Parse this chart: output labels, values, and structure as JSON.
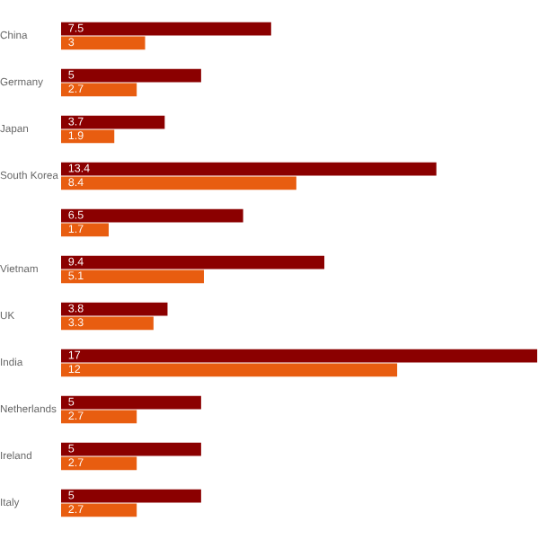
{
  "chart_data": {
    "type": "bar",
    "orientation": "horizontal",
    "data_labels": true,
    "legend": false,
    "tick_labels": "y",
    "categories": [
      "China",
      "Germany",
      "Japan",
      "South Korea",
      null,
      "Vietnam",
      "UK",
      "India",
      "Netherlands",
      "Ireland",
      "Italy"
    ],
    "series": [
      {
        "color": "#8b0000",
        "values": [
          7.5,
          5,
          3.7,
          13.4,
          6.5,
          9.4,
          3.8,
          17,
          5,
          5,
          5
        ]
      },
      {
        "color": "#e85d10",
        "values": [
          3,
          2.7,
          1.9,
          8.4,
          1.7,
          5.1,
          3.3,
          12,
          2.7,
          2.7,
          2.7
        ]
      }
    ]
  }
}
